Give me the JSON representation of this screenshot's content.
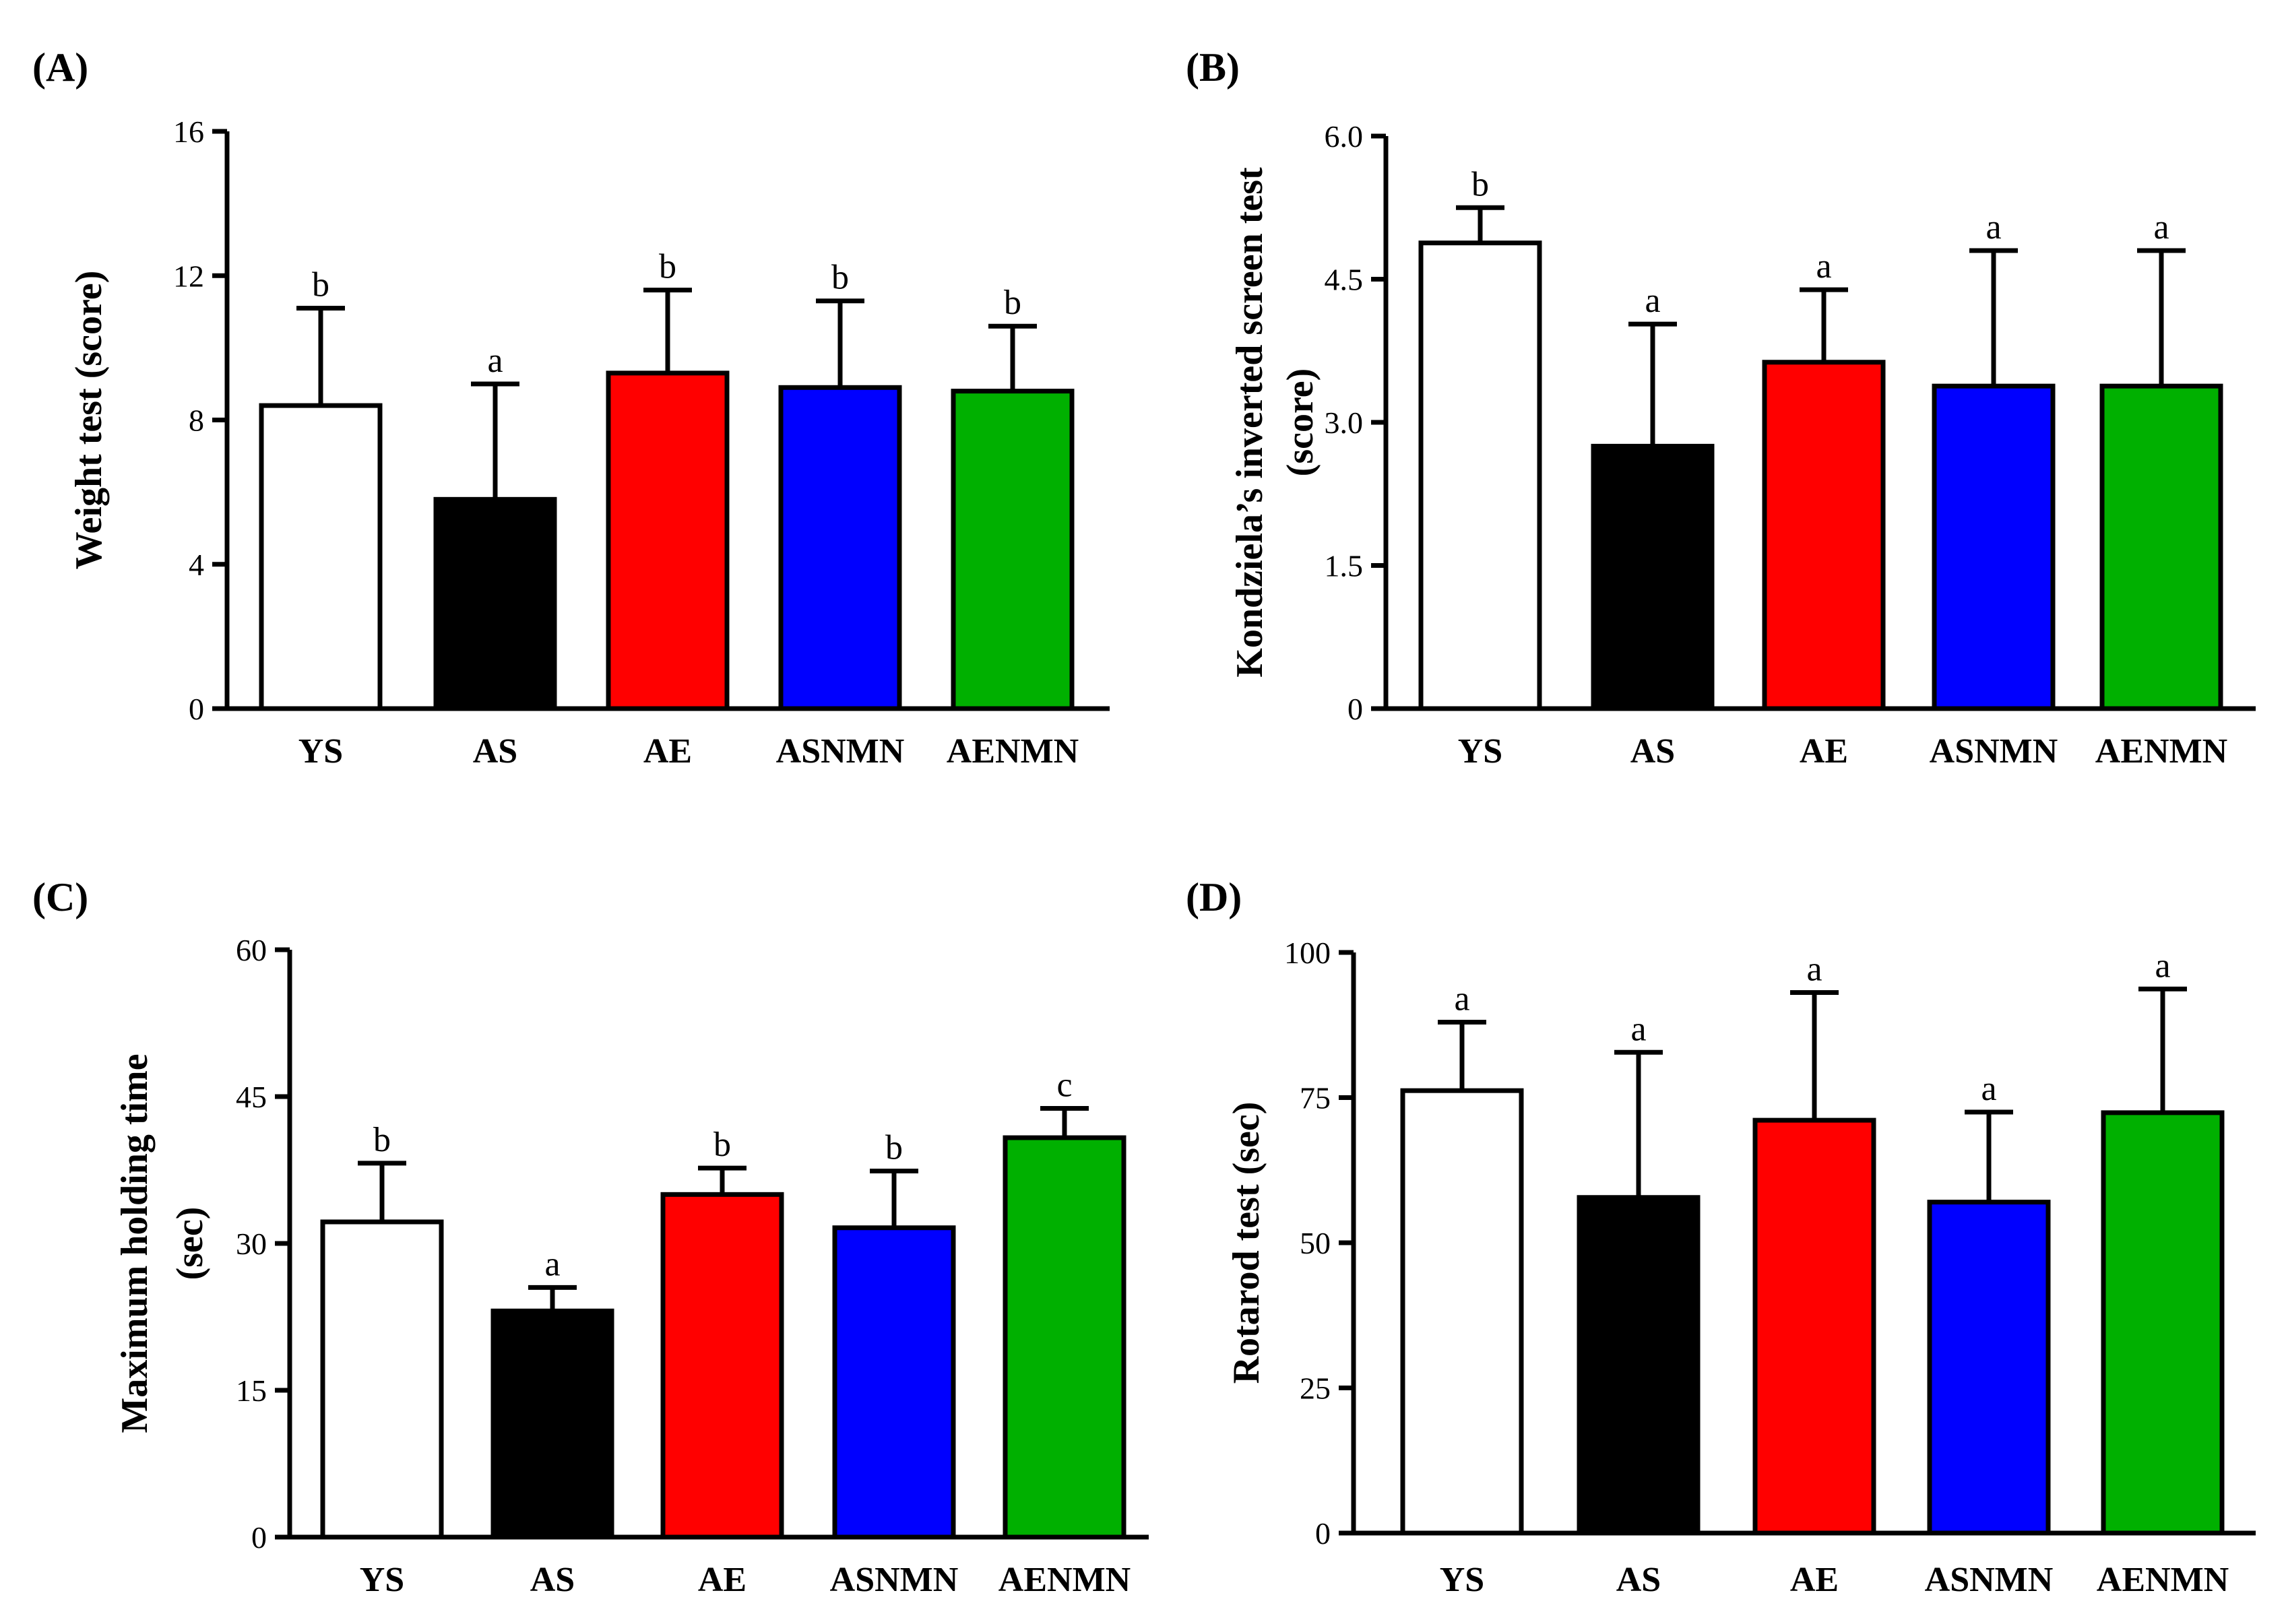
{
  "colors": {
    "YS": "#ffffff",
    "AS": "#000000",
    "AE": "#ff0000",
    "ASNMN": "#0000ff",
    "AENMN": "#00b000",
    "stroke": "#000000"
  },
  "chart_data": [
    {
      "type": "bar",
      "panel_label": "(A)",
      "title": "",
      "ylabel": [
        "Weight test (score)"
      ],
      "xlabel": "",
      "categories": [
        "YS",
        "AS",
        "AE",
        "ASNMN",
        "AENMN"
      ],
      "values": [
        8.4,
        5.8,
        9.3,
        8.9,
        8.8
      ],
      "errors": [
        2.7,
        3.2,
        2.3,
        2.4,
        1.8
      ],
      "significance": [
        "b",
        "a",
        "b",
        "b",
        "b"
      ],
      "ylim": [
        0,
        16
      ],
      "yticks": [
        0,
        4,
        8,
        12,
        16
      ],
      "yticklabels": [
        "0",
        "4",
        "8",
        "12",
        "16"
      ]
    },
    {
      "type": "bar",
      "panel_label": "(B)",
      "title": "",
      "ylabel": [
        "Kondziela’s inverted screen test",
        "(score)"
      ],
      "xlabel": "",
      "categories": [
        "YS",
        "AS",
        "AE",
        "ASNMN",
        "AENMN"
      ],
      "values": [
        4.88,
        2.75,
        3.63,
        3.38,
        3.38
      ],
      "errors": [
        0.37,
        1.28,
        0.76,
        1.42,
        1.42
      ],
      "significance": [
        "b",
        "a",
        "a",
        "a",
        "a"
      ],
      "ylim": [
        0,
        6.0
      ],
      "yticks": [
        0,
        1.5,
        3.0,
        4.5,
        6.0
      ],
      "yticklabels": [
        "0",
        "1.5",
        "3.0",
        "4.5",
        "6.0"
      ]
    },
    {
      "type": "bar",
      "panel_label": "(C)",
      "title": "",
      "ylabel": [
        "Maximum holding time",
        "(sec)"
      ],
      "xlabel": "",
      "categories": [
        "YS",
        "AS",
        "AE",
        "ASNMN",
        "AENMN"
      ],
      "values": [
        32.2,
        23.1,
        35.0,
        31.6,
        40.8
      ],
      "errors": [
        6.0,
        2.4,
        2.7,
        5.8,
        3.0
      ],
      "significance": [
        "b",
        "a",
        "b",
        "b",
        "c"
      ],
      "ylim": [
        0,
        60
      ],
      "yticks": [
        0,
        15,
        30,
        45,
        60
      ],
      "yticklabels": [
        "0",
        "15",
        "30",
        "45",
        "60"
      ]
    },
    {
      "type": "bar",
      "panel_label": "(D)",
      "title": "",
      "ylabel": [
        "Rotarod test (sec)"
      ],
      "xlabel": "",
      "categories": [
        "YS",
        "AS",
        "AE",
        "ASNMN",
        "AENMN"
      ],
      "values": [
        76.2,
        57.8,
        71.1,
        57.0,
        72.4
      ],
      "errors": [
        11.8,
        25.0,
        22.0,
        15.5,
        21.3
      ],
      "significance": [
        "a",
        "a",
        "a",
        "a",
        "a"
      ],
      "ylim": [
        0,
        100
      ],
      "yticks": [
        0,
        25,
        50,
        75,
        100
      ],
      "yticklabels": [
        "0",
        "25",
        "50",
        "75",
        "100"
      ]
    }
  ]
}
